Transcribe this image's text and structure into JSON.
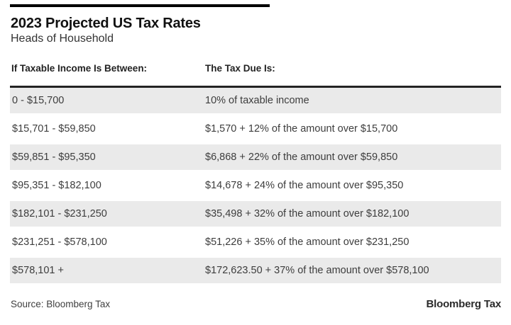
{
  "page": {
    "title": "2023 Projected US Tax Rates",
    "subtitle": "Heads of Household",
    "accent_color": "#000000",
    "row_alt_color": "#eaeaea"
  },
  "table": {
    "columns": [
      "If Taxable Income Is Between:",
      "The Tax Due Is:"
    ],
    "rows": [
      {
        "income": "0 - $15,700",
        "tax": "10% of taxable income"
      },
      {
        "income": "$15,701 - $59,850",
        "tax": "$1,570 + 12% of the amount over $15,700"
      },
      {
        "income": "$59,851 - $95,350",
        "tax": "$6,868 + 22% of the amount over $59,850"
      },
      {
        "income": "$95,351 - $182,100",
        "tax": "$14,678 + 24% of the amount over $95,350"
      },
      {
        "income": "$182,101 - $231,250",
        "tax": "$35,498 + 32% of the amount over $182,100"
      },
      {
        "income": "$231,251 - $578,100",
        "tax": "$51,226 + 35% of the amount over $231,250"
      },
      {
        "income": "$578,101 +",
        "tax": "$172,623.50 + 37% of the amount over $578,100"
      }
    ]
  },
  "footer": {
    "source": "Source: Bloomberg Tax",
    "logo": "Bloomberg Tax"
  },
  "chart_data": {
    "type": "table",
    "title": "2023 Projected US Tax Rates",
    "subtitle": "Heads of Household",
    "columns": [
      "If Taxable Income Is Between:",
      "The Tax Due Is:"
    ],
    "rows": [
      [
        "0 - $15,700",
        "10% of taxable income"
      ],
      [
        "$15,701 - $59,850",
        "$1,570 + 12% of the amount over $15,700"
      ],
      [
        "$59,851 - $95,350",
        "$6,868 + 22% of the amount over $59,850"
      ],
      [
        "$95,351 - $182,100",
        "$14,678 + 24% of the amount over $95,350"
      ],
      [
        "$182,101 - $231,250",
        "$35,498 + 32% of the amount over $182,100"
      ],
      [
        "$231,251 - $578,100",
        "$51,226 + 35% of the amount over $231,250"
      ],
      [
        "$578,101 +",
        "$172,623.50 + 37% of the amount over $578,100"
      ]
    ],
    "brackets": [
      {
        "lower": 0,
        "upper": 15700,
        "rate_pct": 10,
        "base_tax": 0
      },
      {
        "lower": 15701,
        "upper": 59850,
        "rate_pct": 12,
        "base_tax": 1570
      },
      {
        "lower": 59851,
        "upper": 95350,
        "rate_pct": 22,
        "base_tax": 6868
      },
      {
        "lower": 95351,
        "upper": 182100,
        "rate_pct": 24,
        "base_tax": 14678
      },
      {
        "lower": 182101,
        "upper": 231250,
        "rate_pct": 32,
        "base_tax": 35498
      },
      {
        "lower": 231251,
        "upper": 578100,
        "rate_pct": 35,
        "base_tax": 51226
      },
      {
        "lower": 578101,
        "upper": null,
        "rate_pct": 37,
        "base_tax": 172623.5
      }
    ],
    "source": "Source: Bloomberg Tax",
    "layout": {
      "alternating_rows": true,
      "alt_row_color": "#eaeaea",
      "header_rule": true
    }
  }
}
